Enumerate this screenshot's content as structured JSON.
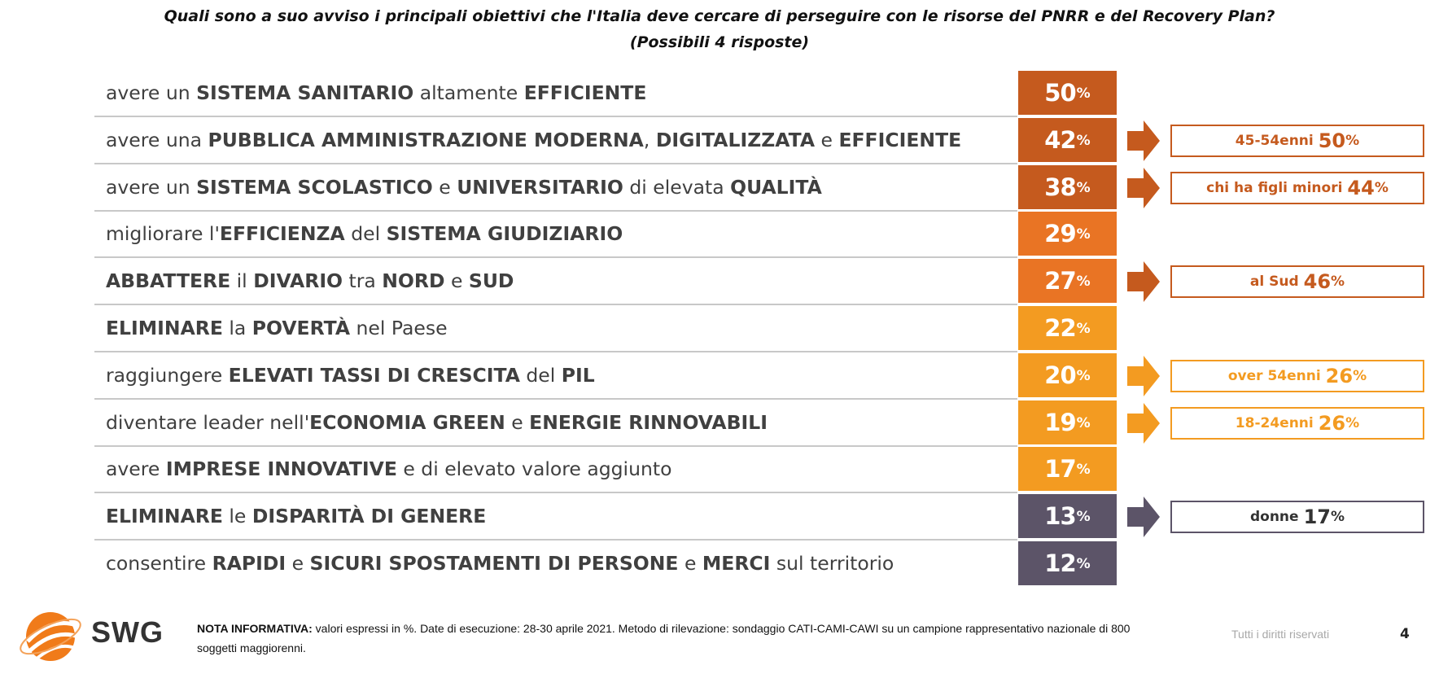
{
  "title": {
    "line1": "Quali sono a suo avviso i principali obiettivi che l'Italia deve cercare di perseguire con le risorse del PNRR e del Recovery Plan?",
    "line2": "(Possibili 4 risposte)"
  },
  "colors": {
    "dark_orange": "#c55a1e",
    "orange": "#e97424",
    "light_orange": "#f39b21",
    "slate": "#5c5468"
  },
  "chart_data": {
    "type": "bar",
    "title": "Quali sono a suo avviso i principali obiettivi che l'Italia deve cercare di perseguire con le risorse del PNRR e del Recovery Plan?",
    "subtitle": "(Possibili 4 risposte)",
    "unit": "%",
    "categories": [
      "avere un SISTEMA SANITARIO altamente EFFICIENTE",
      "avere una PUBBLICA AMMINISTRAZIONE MODERNA, DIGITALIZZATA e EFFICIENTE",
      "avere un SISTEMA SCOLASTICO e UNIVERSITARIO di elevata QUALITÀ",
      "migliorare l'EFFICIENZA del SISTEMA GIUDIZIARIO",
      "ABBATTERE il DIVARIO tra NORD e SUD",
      "ELIMINARE la POVERTÀ nel Paese",
      "raggiungere ELEVATI TASSI DI CRESCITA del PIL",
      "diventare leader nell'ECONOMIA GREEN e ENERGIE RINNOVABILI",
      "avere IMPRESE INNOVATIVE e di elevato valore aggiunto",
      "ELIMINARE le DISPARITÀ DI GENERE",
      "consentire RAPIDI e SICURI SPOSTAMENTI DI PERSONE e MERCI sul territorio"
    ],
    "values": [
      50,
      42,
      38,
      29,
      27,
      22,
      20,
      19,
      17,
      13,
      12
    ],
    "rows": [
      {
        "parts": [
          [
            "t",
            "avere un "
          ],
          [
            "b",
            "SISTEMA SANITARIO"
          ],
          [
            "t",
            " altamente "
          ],
          [
            "b",
            "EFFICIENTE"
          ]
        ],
        "value": 50,
        "color": "#c55a1e",
        "note": null
      },
      {
        "parts": [
          [
            "t",
            "avere una "
          ],
          [
            "b",
            "PUBBLICA AMMINISTRAZIONE MODERNA"
          ],
          [
            "t",
            ", "
          ],
          [
            "b",
            "DIGITALIZZATA"
          ],
          [
            "t",
            " e "
          ],
          [
            "b",
            "EFFICIENTE"
          ]
        ],
        "value": 42,
        "color": "#c55a1e",
        "note": {
          "text": "45-54enni",
          "value": 50,
          "color": "#c55a1e"
        }
      },
      {
        "parts": [
          [
            "t",
            "avere un "
          ],
          [
            "b",
            "SISTEMA SCOLASTICO"
          ],
          [
            "t",
            " e "
          ],
          [
            "b",
            "UNIVERSITARIO"
          ],
          [
            "t",
            " di elevata "
          ],
          [
            "b",
            "QUALITÀ"
          ]
        ],
        "value": 38,
        "color": "#c55a1e",
        "note": {
          "text": "chi ha figli minori",
          "value": 44,
          "color": "#c55a1e"
        }
      },
      {
        "parts": [
          [
            "t",
            "migliorare l'"
          ],
          [
            "b",
            "EFFICIENZA"
          ],
          [
            "t",
            " del "
          ],
          [
            "b",
            "SISTEMA GIUDIZIARIO"
          ]
        ],
        "value": 29,
        "color": "#e97424",
        "note": null
      },
      {
        "parts": [
          [
            "b",
            "ABBATTERE"
          ],
          [
            "t",
            " il "
          ],
          [
            "b",
            "DIVARIO"
          ],
          [
            "t",
            " tra "
          ],
          [
            "b",
            "NORD"
          ],
          [
            "t",
            " e "
          ],
          [
            "b",
            "SUD"
          ]
        ],
        "value": 27,
        "color": "#e97424",
        "note": {
          "text": "al Sud",
          "value": 46,
          "color": "#c55a1e"
        }
      },
      {
        "parts": [
          [
            "b",
            "ELIMINARE"
          ],
          [
            "t",
            " la "
          ],
          [
            "b",
            "POVERTÀ"
          ],
          [
            "t",
            " nel Paese"
          ]
        ],
        "value": 22,
        "color": "#f39b21",
        "note": null
      },
      {
        "parts": [
          [
            "t",
            "raggiungere "
          ],
          [
            "b",
            "ELEVATI TASSI DI CRESCITA"
          ],
          [
            "t",
            " del "
          ],
          [
            "b",
            "PIL"
          ]
        ],
        "value": 20,
        "color": "#f39b21",
        "note": {
          "text": "over 54enni",
          "value": 26,
          "color": "#f39b21"
        }
      },
      {
        "parts": [
          [
            "t",
            "diventare leader nell'"
          ],
          [
            "b",
            "ECONOMIA GREEN"
          ],
          [
            "t",
            " e "
          ],
          [
            "b",
            "ENERGIE RINNOVABILI"
          ]
        ],
        "value": 19,
        "color": "#f39b21",
        "note": {
          "text": "18-24enni",
          "value": 26,
          "color": "#f39b21"
        }
      },
      {
        "parts": [
          [
            "t",
            "avere "
          ],
          [
            "b",
            "IMPRESE INNOVATIVE"
          ],
          [
            "t",
            " e di elevato valore aggiunto"
          ]
        ],
        "value": 17,
        "color": "#f39b21",
        "note": null
      },
      {
        "parts": [
          [
            "b",
            "ELIMINARE"
          ],
          [
            "t",
            " le "
          ],
          [
            "b",
            "DISPARITÀ DI GENERE"
          ]
        ],
        "value": 13,
        "color": "#5c5468",
        "note": {
          "text": "donne",
          "value": 17,
          "color": "#5c5468"
        }
      },
      {
        "parts": [
          [
            "t",
            "consentire "
          ],
          [
            "b",
            "RAPIDI"
          ],
          [
            "t",
            " e "
          ],
          [
            "b",
            "SICURI SPOSTAMENTI DI PERSONE"
          ],
          [
            "t",
            " e "
          ],
          [
            "b",
            "MERCI"
          ],
          [
            "t",
            " sul territorio"
          ]
        ],
        "value": 12,
        "color": "#5c5468",
        "note": null
      }
    ]
  },
  "footer": {
    "note_label": "NOTA INFORMATIVA:",
    "note_text": " valori espressi in %. Date di esecuzione: 28-30 aprile 2021. Metodo di rilevazione: sondaggio CATI-CAMI-CAWI su un campione rappresentativo nazionale di 800 soggetti maggiorenni.",
    "rights": "Tutti i diritti riservati",
    "page_number": "4",
    "logo_text": "SWG"
  }
}
